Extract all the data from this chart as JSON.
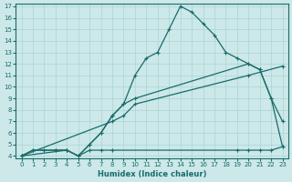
{
  "xlabel": "Humidex (Indice chaleur)",
  "bg_color": "#cce8e8",
  "line_color": "#1a6b6b",
  "grid_color": "#aad4d4",
  "xlim": [
    -0.5,
    23.5
  ],
  "ylim": [
    3.8,
    17.2
  ],
  "xticks": [
    0,
    1,
    2,
    3,
    4,
    5,
    6,
    7,
    8,
    9,
    10,
    11,
    12,
    13,
    14,
    15,
    16,
    17,
    18,
    19,
    20,
    21,
    22,
    23
  ],
  "yticks": [
    4,
    5,
    6,
    7,
    8,
    9,
    10,
    11,
    12,
    13,
    14,
    15,
    16,
    17
  ],
  "line_main_x": [
    0,
    1,
    2,
    3,
    4,
    5,
    6,
    7,
    8,
    9,
    10,
    11,
    12,
    13,
    14,
    15,
    16,
    17,
    18,
    19,
    20,
    21,
    22,
    23
  ],
  "line_main_y": [
    4.0,
    4.5,
    4.5,
    4.5,
    4.5,
    4.0,
    5.0,
    6.0,
    7.5,
    8.5,
    11.0,
    12.5,
    13.0,
    15.0,
    17.0,
    16.5,
    15.5,
    14.5,
    13.0,
    12.5,
    12.0,
    11.5,
    9.0,
    7.0
  ],
  "line2_x": [
    0,
    1,
    2,
    3,
    4,
    5,
    6,
    7,
    8,
    9,
    10,
    20,
    21,
    22,
    23
  ],
  "line2_y": [
    4.0,
    4.5,
    4.5,
    4.5,
    4.5,
    4.0,
    5.0,
    6.0,
    7.5,
    8.5,
    9.0,
    12.0,
    11.5,
    9.0,
    4.8
  ],
  "line3_x": [
    0,
    8,
    9,
    10,
    20,
    23
  ],
  "line3_y": [
    4.0,
    7.0,
    7.5,
    8.5,
    11.0,
    11.8
  ],
  "line4_x": [
    0,
    4,
    5,
    6,
    7,
    8,
    19,
    20,
    21,
    22,
    23
  ],
  "line4_y": [
    4.0,
    4.5,
    4.0,
    4.5,
    4.5,
    4.5,
    4.5,
    4.5,
    4.5,
    4.5,
    4.8
  ],
  "marker": "+"
}
